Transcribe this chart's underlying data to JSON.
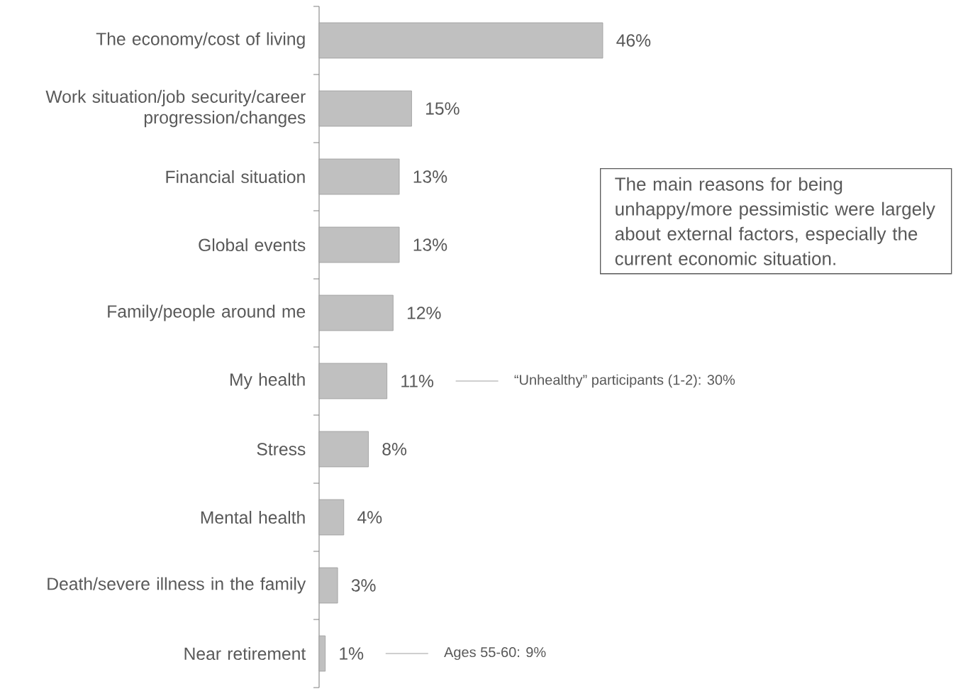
{
  "chart_data": {
    "type": "bar",
    "orientation": "horizontal",
    "color": "#c0c0c0",
    "categories": [
      "The economy/cost of living",
      "Work situation/job security/career progression/changes",
      "Financial situation",
      "Global events",
      "Family/people around me",
      "My health",
      "Stress",
      "Mental health",
      "Death/severe illness in the family",
      "Near retirement"
    ],
    "values": [
      46,
      15,
      13,
      13,
      12,
      11,
      8,
      4,
      3,
      1
    ],
    "value_labels": [
      "46%",
      "15%",
      "13%",
      "13%",
      "12%",
      "11%",
      "8%",
      "4%",
      "3%",
      "1%"
    ],
    "annotations": [
      "“Unhealthy” participants (1-2): 30%",
      "Ages 55-60: 9%",
      "The main reasons for being unhappy/more pessimistic were largely about external factors, especially the current economic situation."
    ]
  }
}
